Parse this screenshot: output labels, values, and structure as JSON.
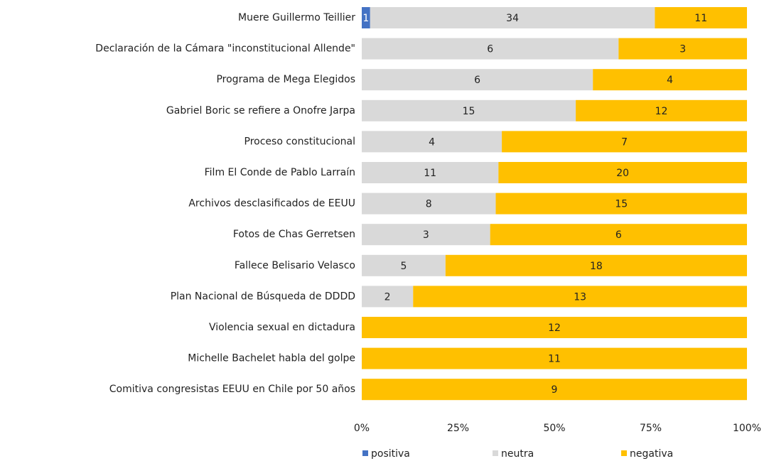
{
  "chart_data": {
    "type": "stacked_bar_100",
    "categories": [
      "Muere Guillermo Teillier",
      "Declaración de la Cámara \"inconstitucional Allende\"",
      "Programa de Mega Elegidos",
      "Gabriel Boric se refiere a Onofre Jarpa",
      "Proceso constitucional",
      "Film El Conde de Pablo Larraín",
      "Archivos desclasificados de EEUU",
      "Fotos de Chas Gerretsen",
      "Fallece Belisario Velasco",
      "Plan Nacional de Búsqueda de DDDD",
      "Violencia sexual en dictadura",
      "Michelle Bachelet habla del golpe",
      "Comitiva congresistas EEUU en Chile por 50 años"
    ],
    "series": [
      {
        "name": "positiva",
        "color": "#4472c4",
        "values": [
          1,
          null,
          null,
          null,
          null,
          null,
          null,
          null,
          null,
          null,
          null,
          null,
          null
        ]
      },
      {
        "name": "neutra",
        "color": "#d9d9d9",
        "values": [
          34,
          6,
          6,
          15,
          4,
          11,
          8,
          3,
          5,
          2,
          null,
          null,
          null
        ]
      },
      {
        "name": "negativa",
        "color": "#ffc000",
        "values": [
          11,
          3,
          4,
          12,
          7,
          20,
          15,
          6,
          18,
          13,
          12,
          11,
          9
        ]
      }
    ],
    "xlim": [
      0,
      100
    ],
    "xticks": [
      {
        "value": 0,
        "label": "0%"
      },
      {
        "value": 25,
        "label": "25%"
      },
      {
        "value": 50,
        "label": "50%"
      },
      {
        "value": 75,
        "label": "75%"
      },
      {
        "value": 100,
        "label": "100%"
      }
    ],
    "legend": "bottom"
  }
}
